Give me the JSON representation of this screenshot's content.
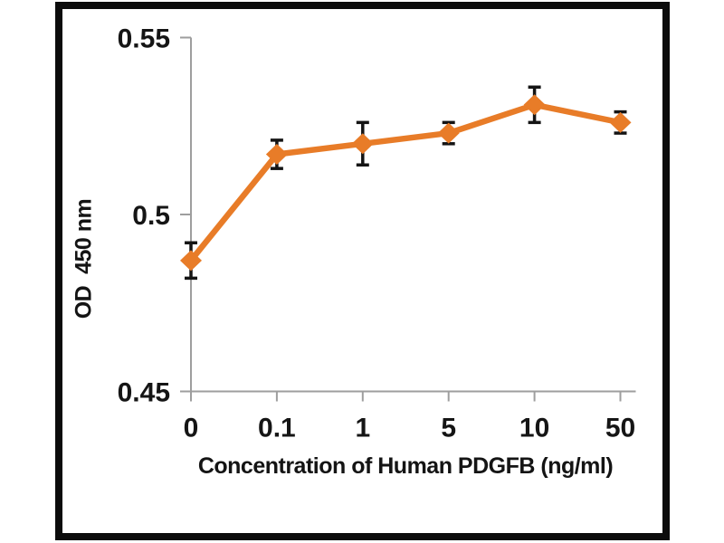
{
  "figure": {
    "background_color": "#ffffff",
    "frame_color": "#0c0c0c"
  },
  "chart_data": {
    "type": "line",
    "title": "",
    "xlabel": "Concentration of Human PDGFB (ng/ml)",
    "ylabel": "OD  450 nm",
    "categories": [
      "0",
      "0.1",
      "1",
      "5",
      "10",
      "50"
    ],
    "series": [
      {
        "values": [
          0.487,
          0.517,
          0.52,
          0.523,
          0.531,
          0.526
        ],
        "error_bars": [
          0.005,
          0.004,
          0.006,
          0.003,
          0.005,
          0.003
        ],
        "color": "#e87c28",
        "marker": "diamond",
        "error_bar_color": "#141414"
      }
    ],
    "ylim": [
      0.45,
      0.55
    ],
    "yticks": [
      "0.45",
      "0.5",
      "0.55"
    ],
    "ytick_values": [
      0.45,
      0.5,
      0.55
    ],
    "grid": false,
    "legend": "none",
    "axis_color": "#9e9e9e",
    "tick_label_color": "#151515"
  }
}
